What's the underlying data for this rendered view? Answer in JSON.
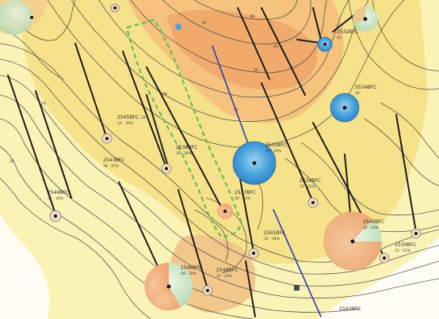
{
  "map": {
    "colors": {
      "background": "#fffdf3",
      "pale_yellow": "#fbf2b6",
      "yellow": "#f6e28a",
      "orange": "#f5c37e",
      "deep_orange": "#f0ab6c",
      "contour": "#3b3b3b",
      "well_track": "#1a1a1a",
      "blue_track": "#2b3bb0",
      "dashed_outline": "#5fbf4f",
      "blue_bubble": "#4aa3dc",
      "green_bubble": "#c9e6c6",
      "orange_bubble": "#f1b784"
    },
    "well_labels": [
      {
        "name": "2544BFC",
        "sub": "32 · 36%"
      },
      {
        "name": "2545BFC",
        "sub": "32 · 30%"
      },
      {
        "name": "2543BFC",
        "sub": "38 · 32%"
      },
      {
        "name": "2538BFC",
        "sub": "30 · 28%"
      },
      {
        "name": "2535BFC",
        "sub": "40 · 35%"
      },
      {
        "name": "2532BFC",
        "sub": "45"
      },
      {
        "name": "2534BFC",
        "sub": "36"
      },
      {
        "name": "2537BFC",
        "sub": "26 · 32%"
      },
      {
        "name": "2539BFC",
        "sub": "30 · 25%"
      },
      {
        "name": "2541BFC",
        "sub": "32 · 34%"
      },
      {
        "name": "2546BFC",
        "sub": "28 · 30%"
      },
      {
        "name": "2548BFC",
        "sub": "32 · 24%"
      },
      {
        "name": "2540BFC",
        "sub": "30 · 20%"
      },
      {
        "name": "2530BFC",
        "sub": "33 · 31%"
      },
      {
        "name": "2542BFC",
        "sub": ""
      }
    ],
    "contour_values": [
      "16",
      "20",
      "24",
      "28",
      "32",
      "36",
      "40",
      "44",
      "48"
    ]
  }
}
